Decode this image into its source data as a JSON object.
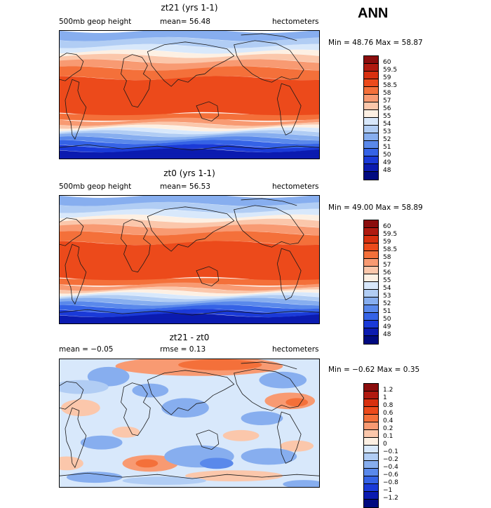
{
  "season": "ANN",
  "panels": [
    {
      "title": "zt21 (yrs 1-1)",
      "left_label": "500mb geop height",
      "center_label": "mean=  56.48",
      "units": "hectometers",
      "minmax": "Min =  48.76 Max =  58.87",
      "field": "abs"
    },
    {
      "title": "zt0 (yrs 1-1)",
      "left_label": "500mb geop height",
      "center_label": "mean=  56.53",
      "units": "hectometers",
      "minmax": "Min =  49.00 Max =  58.89",
      "field": "abs"
    },
    {
      "title": "zt21 - zt0",
      "left_label": "mean =  −0.05",
      "center_label": "rmse =   0.13",
      "units": "hectometers",
      "minmax": "Min = −0.62 Max =   0.35",
      "field": "diff"
    }
  ],
  "colorbar_abs": {
    "labels": [
      "60",
      "59.5",
      "59",
      "58.5",
      "58",
      "57",
      "56",
      "55",
      "54",
      "53",
      "52",
      "51",
      "50",
      "49",
      "48"
    ],
    "colors": [
      "#8b0d0d",
      "#b01a10",
      "#d8300f",
      "#ec4a1b",
      "#f4703a",
      "#f89a72",
      "#fbc7ab",
      "#fdf0e3",
      "#d8e8fb",
      "#b1cdf4",
      "#87aeef",
      "#5a89eb",
      "#3563e6",
      "#1a3ad8",
      "#0b1bb0",
      "#000a80"
    ]
  },
  "colorbar_diff": {
    "labels": [
      "1.2",
      "1",
      "0.8",
      "0.6",
      "0.4",
      "0.2",
      "0.1",
      "0",
      "−0.1",
      "−0.2",
      "−0.4",
      "−0.6",
      "−0.8",
      "−1",
      "−1.2"
    ],
    "colors": [
      "#8b0d0d",
      "#b01a10",
      "#d8300f",
      "#ec4a1b",
      "#f4703a",
      "#f89a72",
      "#fbc7ab",
      "#fdf0e3",
      "#d8e8fb",
      "#b1cdf4",
      "#87aeef",
      "#5a89eb",
      "#3563e6",
      "#1a3ad8",
      "#0b1bb0",
      "#000a80"
    ]
  }
}
